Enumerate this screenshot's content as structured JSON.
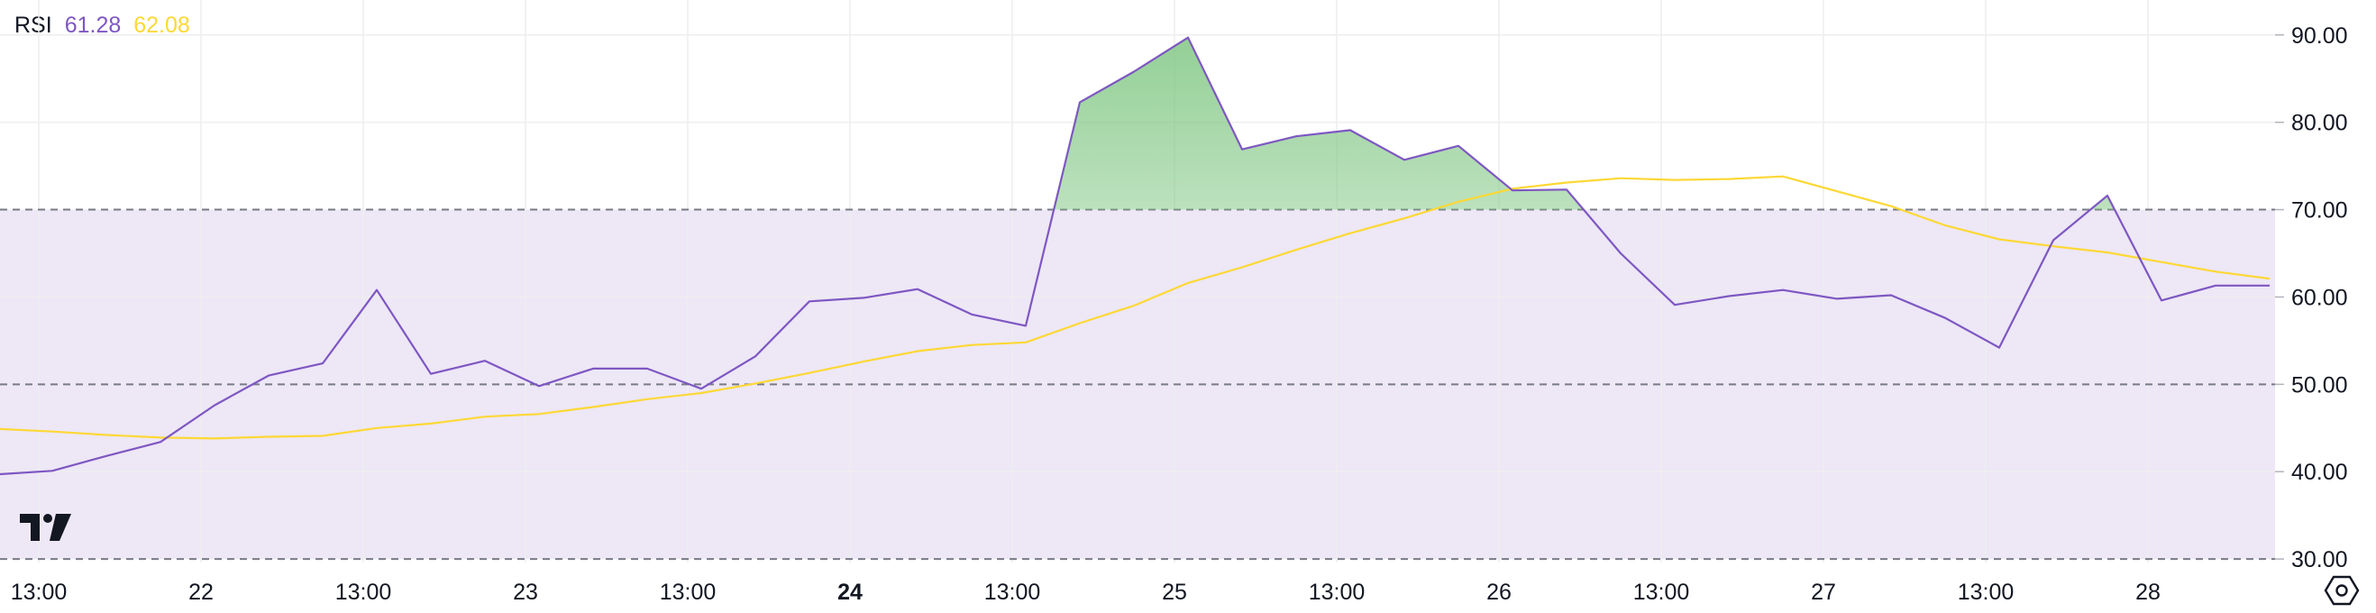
{
  "legend": {
    "name": "RSI",
    "rsi_value": "61.28",
    "ma_value": "62.08"
  },
  "colors": {
    "rsi": "#7e57c2",
    "ma": "#fdd835",
    "band": "#ede7f6",
    "fill": "#81c784",
    "grid": "#eeeeee",
    "dashed": "#787b86"
  },
  "icons": {
    "logo": "tradingview-logo-icon",
    "settings": "settings-gear-icon"
  },
  "chart_data": {
    "type": "line",
    "y_ticks": [
      "90.00",
      "80.00",
      "70.00",
      "60.00",
      "50.00",
      "40.00",
      "30.00"
    ],
    "ylim": [
      29.6,
      94
    ],
    "band": [
      30,
      70
    ],
    "dashed_levels": [
      70,
      50,
      30
    ],
    "x_ticks": [
      {
        "label": "13:00",
        "i": 0.75,
        "bold": false
      },
      {
        "label": "22",
        "i": 3.75,
        "bold": false
      },
      {
        "label": "13:00",
        "i": 6.75,
        "bold": false
      },
      {
        "label": "23",
        "i": 9.75,
        "bold": false
      },
      {
        "label": "13:00",
        "i": 12.75,
        "bold": false
      },
      {
        "label": "24",
        "i": 15.75,
        "bold": true
      },
      {
        "label": "13:00",
        "i": 18.75,
        "bold": false
      },
      {
        "label": "25",
        "i": 21.75,
        "bold": false
      },
      {
        "label": "13:00",
        "i": 24.75,
        "bold": false
      },
      {
        "label": "26",
        "i": 27.75,
        "bold": false
      },
      {
        "label": "13:00",
        "i": 30.75,
        "bold": false
      },
      {
        "label": "27",
        "i": 33.75,
        "bold": false
      },
      {
        "label": "13:00",
        "i": 36.75,
        "bold": false
      },
      {
        "label": "28",
        "i": 39.75,
        "bold": false
      }
    ],
    "series": [
      {
        "values": [
          39.7,
          40.1,
          41.8,
          43.4,
          47.6,
          51.0,
          52.4,
          60.8,
          51.2,
          52.7,
          49.8,
          51.8,
          51.8,
          49.5,
          53.2,
          59.5,
          59.9,
          60.9,
          58.0,
          56.7,
          82.3,
          85.8,
          89.7,
          76.9,
          78.4,
          79.1,
          75.7,
          77.3,
          72.2,
          72.3,
          65.0,
          59.1,
          60.1,
          60.8,
          59.8,
          60.2,
          57.6,
          54.2,
          66.5,
          71.6,
          59.6,
          61.3,
          61.3
        ]
      },
      {
        "values": [
          44.9,
          44.6,
          44.2,
          43.9,
          43.8,
          44.0,
          44.1,
          45.0,
          45.5,
          46.3,
          46.6,
          47.4,
          48.3,
          49.0,
          50.1,
          51.3,
          52.6,
          53.8,
          54.5,
          54.8,
          57.0,
          59.0,
          61.6,
          63.4,
          65.4,
          67.3,
          69.0,
          70.9,
          72.4,
          73.1,
          73.6,
          73.4,
          73.5,
          73.8,
          72.1,
          70.4,
          68.2,
          66.6,
          65.8,
          65.1,
          64.0,
          62.9,
          62.1
        ]
      }
    ]
  }
}
